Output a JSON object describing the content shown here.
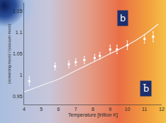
{
  "chart_data": {
    "type": "scatter",
    "x_label": "Temperature [trillion K]",
    "y_label": "(screening mass) / (vacuum mass)",
    "xlim": [
      4,
      12
    ],
    "xticks": [
      4,
      5,
      6,
      7,
      8,
      9,
      10,
      11,
      12
    ],
    "ylim": [
      0.93,
      1.17
    ],
    "yticks": [
      0.95,
      1,
      1.05,
      1.1,
      1.15
    ],
    "grid": false,
    "series": [
      {
        "type": "scatter",
        "color": "#ffffff",
        "marker": "square",
        "x": [
          4.3,
          5.8,
          6.6,
          7.0,
          7.5,
          8.1,
          8.4,
          9.0,
          9.4,
          10.0,
          11.0,
          11.5
        ],
        "values": [
          0.985,
          1.02,
          1.025,
          1.03,
          1.035,
          1.04,
          1.045,
          1.06,
          1.06,
          1.07,
          1.085,
          1.09
        ],
        "errors": [
          0.01,
          0.008,
          0.008,
          0.008,
          0.008,
          0.008,
          0.008,
          0.01,
          0.01,
          0.01,
          0.01,
          0.012
        ]
      },
      {
        "type": "line",
        "color": "#f2f2f2",
        "line_style": "solid",
        "x": [
          4,
          5,
          6,
          7,
          8,
          9,
          10,
          11,
          11.8
        ],
        "values": [
          0.96,
          0.975,
          0.99,
          1.01,
          1.03,
          1.05,
          1.07,
          1.095,
          1.12
        ]
      }
    ],
    "annotations": [
      "b",
      "b̄"
    ]
  }
}
